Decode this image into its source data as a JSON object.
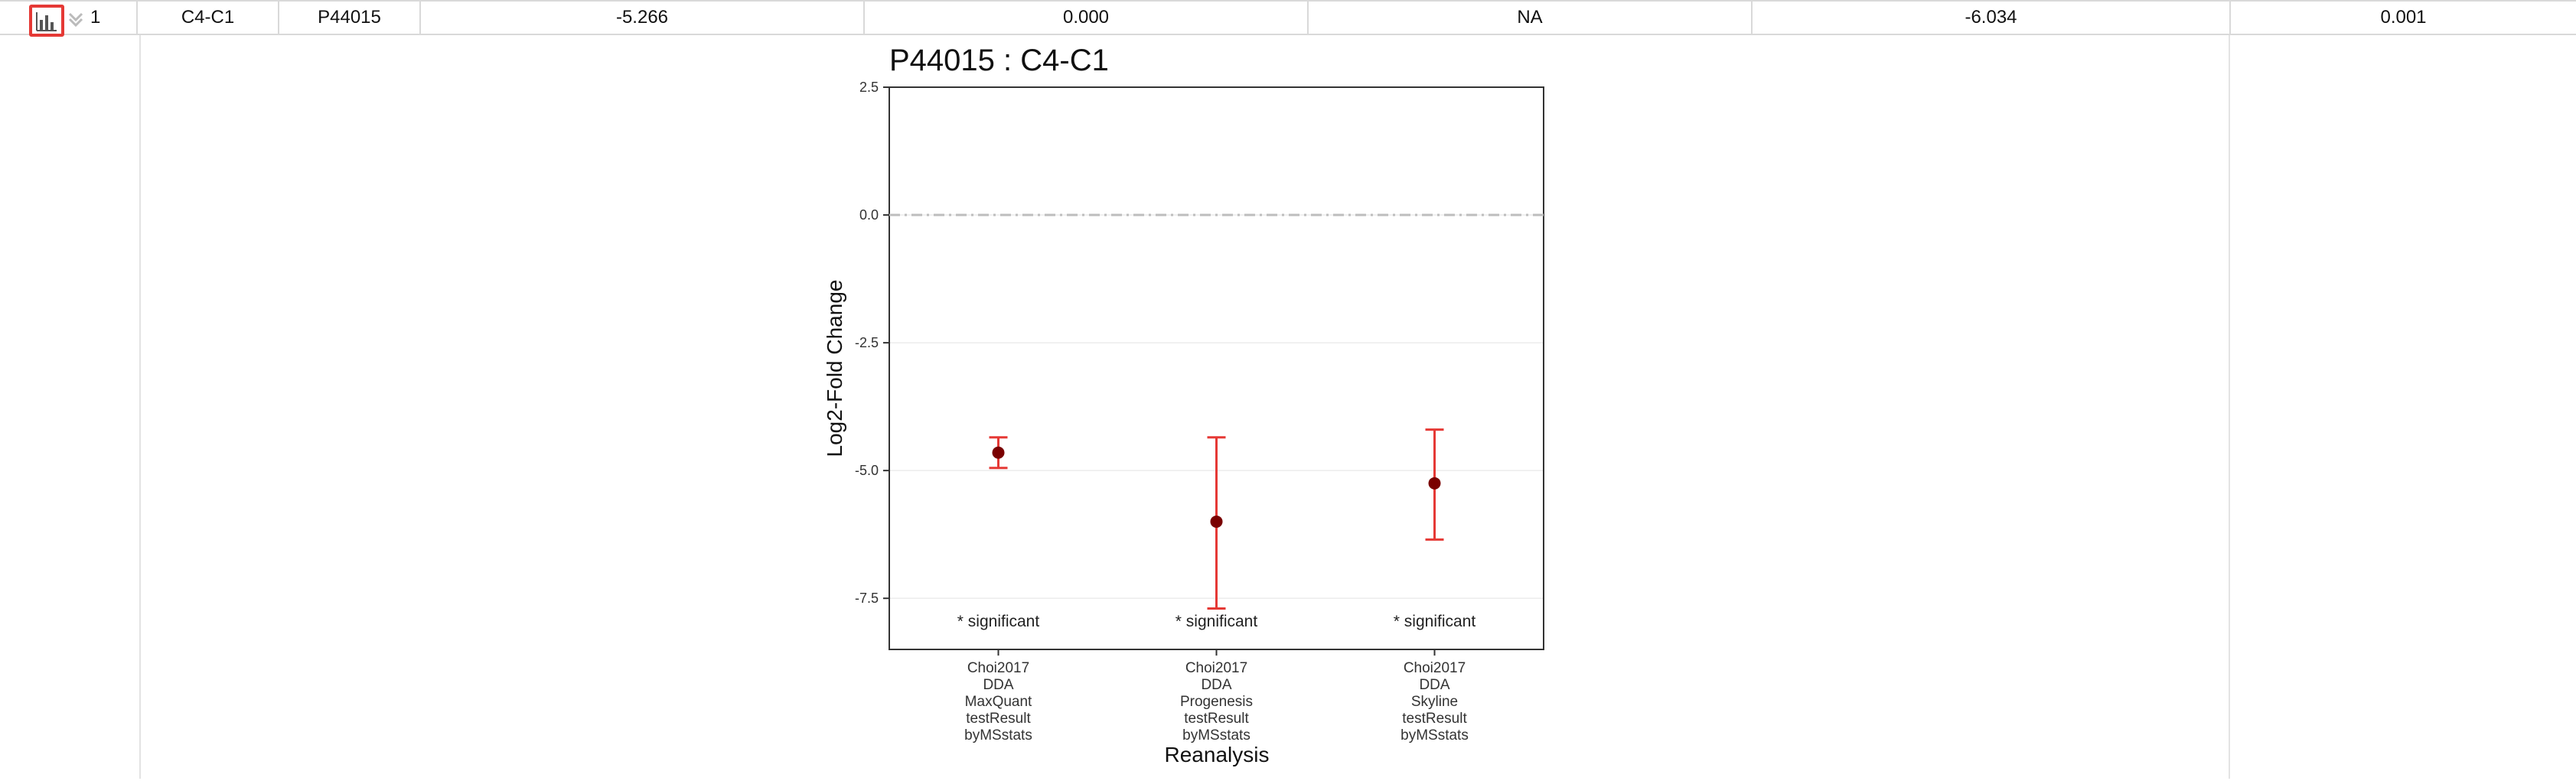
{
  "table": {
    "row": {
      "row_number": "1",
      "label": "C4-C1",
      "protein": "P44015",
      "col4": "-5.266",
      "col5": "0.000",
      "col6": "NA",
      "col7": "-6.034",
      "col8": "0.001"
    },
    "toggle_icon": "bar-chart-icon",
    "expand_icon": "chevron-down-icon"
  },
  "colors": {
    "error_bar": "#e53935",
    "point": "#7a0000",
    "reference_line": "#bdbdbd",
    "panel_border": "#333333",
    "highlight": "#e53935"
  },
  "chart_data": {
    "type": "scatter",
    "title": "P44015 : C4-C1",
    "xlabel": "Reanalysis",
    "ylabel": "Log2-Fold Change",
    "ylim": [
      -8.5,
      2.5
    ],
    "yticks": [
      "2.5",
      "0.0",
      "-2.5",
      "-5.0",
      "-7.5"
    ],
    "ytick_values": [
      2.5,
      0.0,
      -2.5,
      -5.0,
      -7.5
    ],
    "reference_line": 0.0,
    "grid": true,
    "categories": [
      [
        "Choi2017",
        "DDA",
        "MaxQuant",
        "testResult",
        "byMSstats"
      ],
      [
        "Choi2017",
        "DDA",
        "Progenesis",
        "testResult",
        "byMSstats"
      ],
      [
        "Choi2017",
        "DDA",
        "Skyline",
        "testResult",
        "byMSstats"
      ]
    ],
    "values": [
      -4.65,
      -6.0,
      -5.25
    ],
    "lower": [
      -4.95,
      -7.7,
      -6.35
    ],
    "upper": [
      -4.35,
      -4.35,
      -4.2
    ],
    "annotations": [
      "* significant",
      "* significant",
      "* significant"
    ]
  }
}
